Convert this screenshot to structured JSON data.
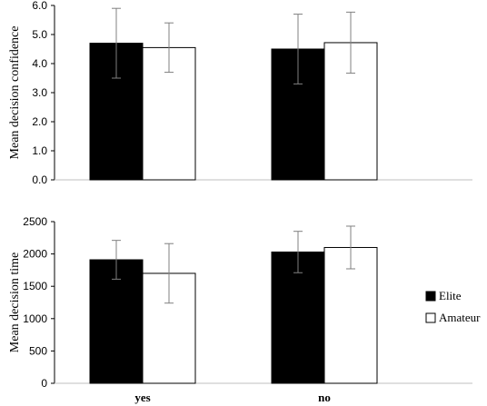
{
  "chart_data": [
    {
      "type": "bar",
      "categories": [
        "yes",
        "no"
      ],
      "ylabel": "Mean decision  confidence",
      "ylim": [
        0,
        6
      ],
      "yticks": [
        "0.0",
        "1.0",
        "2.0",
        "3.0",
        "4.0",
        "5.0",
        "6.0"
      ],
      "series": [
        {
          "name": "Elite",
          "values": [
            4.7,
            4.5
          ],
          "errors": [
            1.2,
            1.2
          ],
          "color": "#000000"
        },
        {
          "name": "Amateur",
          "values": [
            4.55,
            4.72
          ],
          "errors": [
            0.85,
            1.05
          ],
          "color": "#ffffff"
        }
      ]
    },
    {
      "type": "bar",
      "categories": [
        "yes",
        "no"
      ],
      "ylabel": "Mean decision  time",
      "ylim": [
        0,
        2500
      ],
      "yticks": [
        "0",
        "500",
        "1000",
        "1500",
        "2000",
        "2500"
      ],
      "series": [
        {
          "name": "Elite",
          "values": [
            1910,
            2030
          ],
          "errors": [
            300,
            320
          ],
          "color": "#000000"
        },
        {
          "name": "Amateur",
          "values": [
            1700,
            2100
          ],
          "errors": [
            460,
            330
          ],
          "color": "#ffffff"
        }
      ]
    }
  ],
  "legend": {
    "placement": "right",
    "items": [
      {
        "label": "Elite",
        "color": "#000000"
      },
      {
        "label": "Amateur",
        "color": "#ffffff"
      }
    ]
  }
}
